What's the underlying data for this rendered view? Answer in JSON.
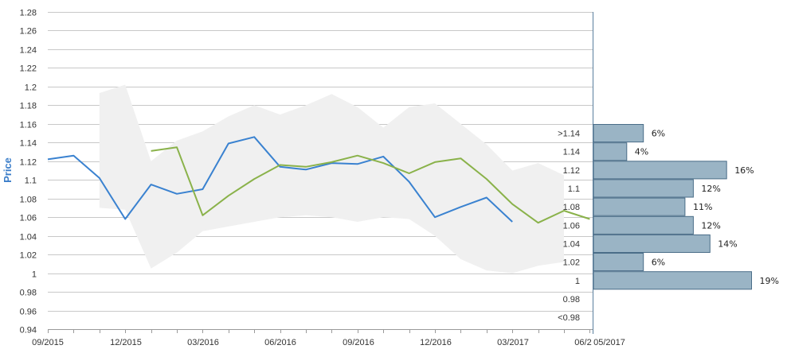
{
  "chart_data": {
    "type": "line",
    "ylabel": "Price",
    "ylim": [
      0.94,
      1.28
    ],
    "yticks": [
      "0.94",
      "0.96",
      "0.98",
      "1",
      "1.02",
      "1.04",
      "1.06",
      "1.08",
      "1.1",
      "1.12",
      "1.14",
      "1.16",
      "1.18",
      "1.2",
      "1.22",
      "1.24",
      "1.26",
      "1.28"
    ],
    "xticks": [
      "09/2015",
      "12/2015",
      "03/2016",
      "06/2016",
      "09/2016",
      "12/2016",
      "03/2017",
      "06/2",
      "05/2017"
    ],
    "grid": true,
    "band": {
      "x": [
        "11/2015",
        "12/2015",
        "01/2016",
        "02/2016",
        "03/2016",
        "04/2016",
        "05/2016",
        "06/2016",
        "07/2016",
        "08/2016",
        "09/2016",
        "10/2016",
        "11/2016",
        "12/2016",
        "01/2017",
        "02/2017",
        "03/2017",
        "04/2017",
        "05/2017"
      ],
      "upper": [
        1.193,
        1.202,
        1.12,
        1.142,
        1.152,
        1.168,
        1.18,
        1.17,
        1.18,
        1.192,
        1.178,
        1.156,
        1.178,
        1.182,
        1.16,
        1.138,
        1.11,
        1.118,
        1.105
      ],
      "lower": [
        1.07,
        1.068,
        1.005,
        1.022,
        1.045,
        1.05,
        1.055,
        1.06,
        1.062,
        1.06,
        1.055,
        1.06,
        1.058,
        1.04,
        1.015,
        1.003,
        1.0,
        1.008,
        1.012
      ]
    },
    "series": [
      {
        "color": "#3a82d0",
        "x": [
          "09/2015",
          "10/2015",
          "11/2015",
          "12/2015",
          "01/2016",
          "02/2016",
          "03/2016",
          "04/2016",
          "05/2016",
          "06/2016",
          "07/2016",
          "08/2016",
          "09/2016",
          "10/2016",
          "11/2016",
          "12/2016",
          "01/2017",
          "02/2017",
          "03/2017"
        ],
        "values": [
          1.122,
          1.126,
          1.102,
          1.058,
          1.095,
          1.085,
          1.09,
          1.139,
          1.146,
          1.114,
          1.111,
          1.118,
          1.117,
          1.125,
          1.098,
          1.06,
          1.071,
          1.081,
          1.055
        ]
      },
      {
        "color": "#8ab24a",
        "x": [
          "01/2016",
          "02/2016",
          "03/2016",
          "04/2016",
          "05/2016",
          "06/2016",
          "07/2016",
          "08/2016",
          "09/2016",
          "10/2016",
          "11/2016",
          "12/2016",
          "01/2017",
          "02/2017",
          "03/2017",
          "04/2017",
          "05/2017",
          "06/2017"
        ],
        "values": [
          1.131,
          1.135,
          1.062,
          1.083,
          1.101,
          1.116,
          1.114,
          1.119,
          1.126,
          1.118,
          1.107,
          1.119,
          1.123,
          1.101,
          1.074,
          1.054,
          1.067,
          1.058
        ]
      }
    ],
    "histogram": {
      "categories": [
        ">1.14",
        "1.14",
        "1.12",
        "1.1",
        "1.08",
        "1.06",
        "1.04",
        "1.02",
        "1",
        "0.98",
        "<0.98"
      ],
      "values": [
        6,
        4,
        16,
        12,
        11,
        12,
        14,
        6,
        19,
        null,
        null
      ],
      "labels": [
        "6%",
        "4%",
        "16%",
        "12%",
        "11%",
        "12%",
        "14%",
        "6%",
        "19%",
        "",
        ""
      ],
      "color": "#9ab4c5"
    }
  }
}
